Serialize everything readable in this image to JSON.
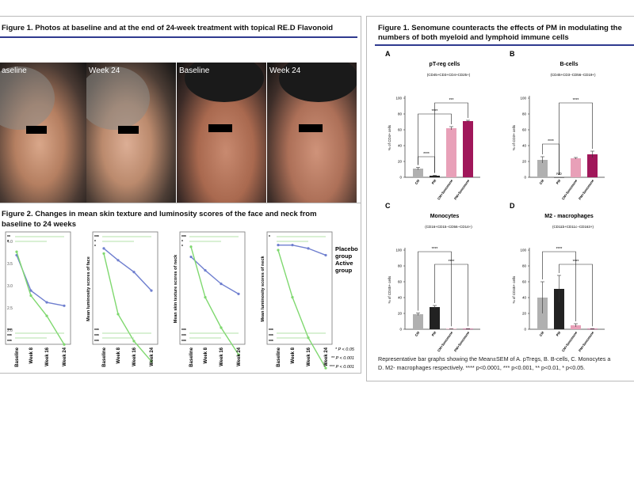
{
  "left_panel": {
    "fig1_title": "Figure 1. Photos at baseline and at the end of 24-week treatment with topical RE.D Flavonoid",
    "photos": [
      "aseline",
      "Week 24",
      "Baseline",
      "Week 24"
    ],
    "fig2_title_line1": "Figure 2. Changes in mean skin texture and luminosity scores of the face and neck from",
    "fig2_title_line2": "baseline to 24 weeks",
    "timepoints": [
      "Baseline",
      "Week 8",
      "Week 16",
      "Week 24"
    ],
    "plots": [
      {
        "ylabel": "",
        "y_ticks": [
          "4.0",
          "3.5",
          "3.0",
          "2.5",
          "2.0"
        ],
        "series": [
          {
            "name": "Placebo group",
            "color": "#6f7fcf",
            "values": [
              4.35,
              3.3,
              2.95,
              2.85
            ]
          },
          {
            "name": "Active group",
            "color": "#7fd86f",
            "values": [
              4.45,
              3.15,
              2.55,
              1.7
            ]
          }
        ],
        "sig_top": [
          "**",
          "*"
        ],
        "sig_bottom": [
          "***",
          "***",
          "***"
        ]
      },
      {
        "ylabel": "Mean luminosity scores of face",
        "series": [
          {
            "name": "Placebo group",
            "color": "#6f7fcf",
            "values": [
              4.55,
              4.2,
              3.85,
              3.3
            ]
          },
          {
            "name": "Active group",
            "color": "#7fd86f",
            "values": [
              4.4,
              2.6,
              1.8,
              1.2
            ]
          }
        ],
        "sig_top": [
          "***",
          "*",
          "*"
        ],
        "sig_bottom": [
          "***",
          "***",
          "***"
        ]
      },
      {
        "ylabel": "Mean skin texture scores of neck",
        "series": [
          {
            "name": "Placebo group",
            "color": "#6f7fcf",
            "values": [
              4.3,
              3.9,
              3.5,
              3.2
            ]
          },
          {
            "name": "Active group",
            "color": "#7fd86f",
            "values": [
              4.6,
              3.1,
              2.2,
              1.4
            ]
          }
        ],
        "sig_top": [
          "***",
          "*",
          "*"
        ],
        "sig_bottom": [
          "***",
          "***",
          "***"
        ]
      },
      {
        "ylabel": "Mean luminosity scores of neck",
        "series": [
          {
            "name": "Placebo group",
            "color": "#6f7fcf",
            "values": [
              4.65,
              4.65,
              4.55,
              4.35
            ]
          },
          {
            "name": "Active group",
            "color": "#7fd86f",
            "values": [
              4.5,
              3.1,
              1.9,
              1.0
            ]
          }
        ],
        "sig_top": [
          "*"
        ],
        "sig_bottom": [
          "***",
          "***",
          "***"
        ]
      }
    ],
    "legend": {
      "placebo": "Placebo group",
      "active": "Active group"
    },
    "pvals": [
      "* P < 0.05",
      "** P < 0.001",
      "*** P < 0.001"
    ]
  },
  "right_panel": {
    "fig_title_line1": "Figure 1. Senomune counteracts the effects of PM in modulating the",
    "fig_title_line2": "numbers of both myeloid and lymphoid immune cells",
    "caption_line1": "Representative bar graphs showing the Mean±SEM of A. pTregs, B. B-cells, C. Monocytes a",
    "caption_line2": "D. M2- macrophages respectively. **** p<0.0001, *** p<0.001, ** p<0.01, * p<0.05.",
    "colors": {
      "CM": "#b0b0b0",
      "PM": "#222222",
      "CM+Senomune": "#e8a0b8",
      "PM+Senomune": "#a0175a"
    }
  },
  "chart_data": [
    {
      "type": "bar",
      "letter": "A",
      "title": "pT-reg cells",
      "subtitle": "(CD45+CD3+CD4+CD25+)",
      "ylabel": "% of CD4+ cells",
      "categories": [
        "CM",
        "PM",
        "CM+Senomune",
        "PM+Senomune"
      ],
      "values": [
        11,
        2,
        62,
        71
      ],
      "errors": [
        1.5,
        0.5,
        2,
        1
      ],
      "ylim": [
        0,
        100
      ],
      "y_ticks": [
        "0",
        "20",
        "40",
        "60",
        "80",
        "100"
      ],
      "sig": [
        "****",
        "***",
        "****"
      ],
      "notes": []
    },
    {
      "type": "bar",
      "letter": "B",
      "title": "B-cells",
      "subtitle": "(CD45+CD3−CD56−CD19+)",
      "ylabel": "% of CD3+ cells",
      "categories": [
        "CM",
        "PM",
        "CM+Senomune",
        "PM+Senomune"
      ],
      "values": [
        22,
        0,
        24,
        29
      ],
      "errors": [
        4,
        0,
        1,
        4
      ],
      "ylim": [
        0,
        100
      ],
      "y_ticks": [
        "0",
        "20",
        "40",
        "60",
        "80",
        "100"
      ],
      "sig": [
        "****",
        "****"
      ],
      "notes": [
        "ND"
      ]
    },
    {
      "type": "bar",
      "letter": "C",
      "title": "Monocytes",
      "subtitle": "(CD16+CD15−CD56−CD14+)",
      "ylabel": "% of CD45+ cells",
      "categories": [
        "CM",
        "PM",
        "CM+Senomune",
        "PM+Senomune"
      ],
      "values": [
        19,
        28,
        0.6,
        0.5
      ],
      "errors": [
        1.5,
        2,
        0.2,
        0.2
      ],
      "ylim": [
        0,
        100
      ],
      "y_ticks": [
        "0",
        "20",
        "40",
        "60",
        "80",
        "100"
      ],
      "sig": [
        "****",
        "****"
      ],
      "notes": []
    },
    {
      "type": "bar",
      "letter": "D",
      "title": "M2 - macrophages",
      "subtitle": "(CD11b+CD11c−CD163+)",
      "ylabel": "% of CD45+ cells",
      "categories": [
        "CM",
        "PM",
        "CM+Senomune",
        "PM+Senomune"
      ],
      "values": [
        40,
        51,
        5,
        0.5
      ],
      "errors": [
        20,
        17,
        2,
        0.2
      ],
      "ylim": [
        0,
        100
      ],
      "y_ticks": [
        "0",
        "20",
        "40",
        "60",
        "80",
        "100"
      ],
      "sig": [
        "****",
        "****"
      ],
      "notes": []
    }
  ]
}
